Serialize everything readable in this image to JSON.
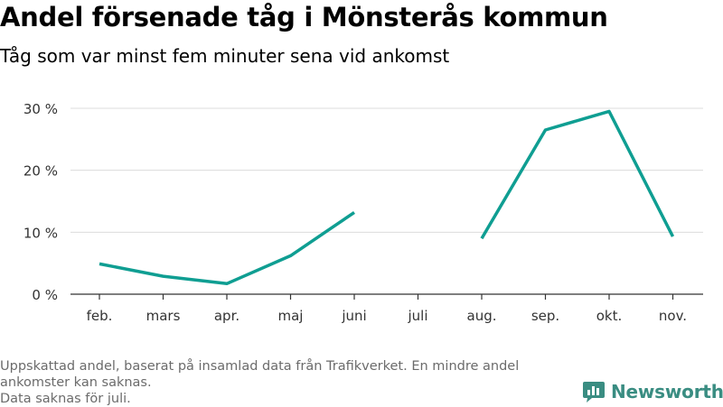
{
  "title": "Andel försenade tåg i Mönsterås kommun",
  "subtitle": "Tåg som var minst fem minuter sena vid ankomst",
  "note_lines": [
    "Uppskattad andel, baserat på insamlad data från Trafikverket. En mindre andel",
    "ankomster kan saknas.",
    "Data saknas för juli."
  ],
  "brand": {
    "name": "Newsworthy",
    "icon": "bar-chart-logo-icon",
    "color": "#3a8d82"
  },
  "chart_data": {
    "type": "line",
    "title": "Andel försenade tåg i Mönsterås kommun",
    "subtitle": "Tåg som var minst fem minuter sena vid ankomst",
    "categories": [
      "feb.",
      "mars",
      "apr.",
      "maj",
      "juni",
      "juli",
      "aug.",
      "sep.",
      "okt.",
      "nov."
    ],
    "series": [
      {
        "values": [
          4.9,
          2.9,
          1.7,
          6.2,
          13.2,
          null,
          9.0,
          26.5,
          29.5,
          9.3
        ],
        "color": "#0f9e92"
      }
    ],
    "ylim": [
      0,
      30
    ],
    "yticks": [
      0,
      10,
      20,
      30
    ],
    "ytick_labels": [
      "0 %",
      "10 %",
      "20 %",
      "30 %"
    ],
    "grid": true,
    "legend": "none"
  }
}
